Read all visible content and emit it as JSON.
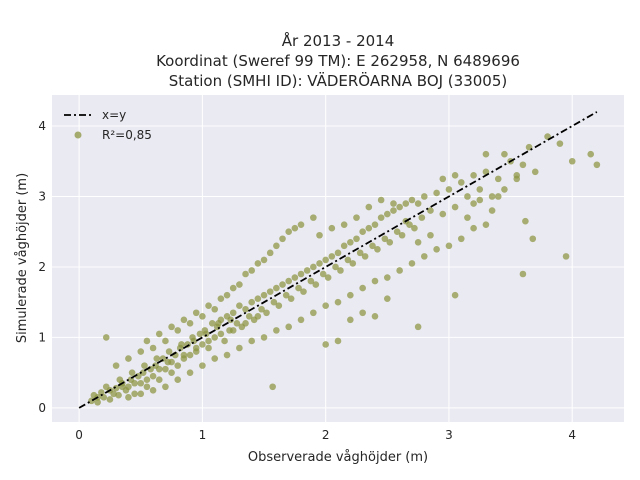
{
  "chart_data": {
    "type": "scatter",
    "title_lines": [
      "År 2013 - 2014",
      "Koordinat (Sweref 99 TM): E 262958, N 6489696",
      "Station (SMHI ID): VÄDERÖARNA BOJ (33005)"
    ],
    "xlabel": "Observerade våghöjder (m)",
    "ylabel": "Simulerade våghöjder (m)",
    "xlim": [
      -0.22,
      4.42
    ],
    "ylim": [
      -0.2,
      4.44
    ],
    "xticks": [
      0,
      1,
      2,
      3,
      4
    ],
    "yticks": [
      0,
      1,
      2,
      3,
      4
    ],
    "grid": true,
    "background_color": "#eaeaf2",
    "legend_position": "top-left",
    "series": [
      {
        "name": "x=y",
        "kind": "line",
        "style": "dashdot",
        "color": "#000000",
        "x": [
          0,
          4.2
        ],
        "y": [
          0,
          4.2
        ]
      },
      {
        "name": "R²=0,85",
        "kind": "scatter",
        "color": "#8c9440",
        "points": [
          [
            0.1,
            0.1
          ],
          [
            0.12,
            0.18
          ],
          [
            0.15,
            0.08
          ],
          [
            0.18,
            0.22
          ],
          [
            0.2,
            0.15
          ],
          [
            0.22,
            0.3
          ],
          [
            0.25,
            0.12
          ],
          [
            0.28,
            0.2
          ],
          [
            0.3,
            0.28
          ],
          [
            0.32,
            0.18
          ],
          [
            0.35,
            0.35
          ],
          [
            0.38,
            0.25
          ],
          [
            0.4,
            0.3
          ],
          [
            0.42,
            0.4
          ],
          [
            0.45,
            0.2
          ],
          [
            0.48,
            0.45
          ],
          [
            0.5,
            0.35
          ],
          [
            0.52,
            0.5
          ],
          [
            0.55,
            0.3
          ],
          [
            0.58,
            0.55
          ],
          [
            0.6,
            0.45
          ],
          [
            0.62,
            0.6
          ],
          [
            0.65,
            0.4
          ],
          [
            0.68,
            0.7
          ],
          [
            0.7,
            0.55
          ],
          [
            0.72,
            0.65
          ],
          [
            0.75,
            0.5
          ],
          [
            0.78,
            0.75
          ],
          [
            0.8,
            0.6
          ],
          [
            0.82,
            0.85
          ],
          [
            0.85,
            0.7
          ],
          [
            0.88,
            0.9
          ],
          [
            0.9,
            0.75
          ],
          [
            0.92,
            1.0
          ],
          [
            0.95,
            0.8
          ],
          [
            0.98,
            1.05
          ],
          [
            1.0,
            0.9
          ],
          [
            1.02,
            1.1
          ],
          [
            1.05,
            0.85
          ],
          [
            1.08,
            1.2
          ],
          [
            1.1,
            1.0
          ],
          [
            1.12,
            1.15
          ],
          [
            1.15,
            1.25
          ],
          [
            1.18,
            0.95
          ],
          [
            1.2,
            1.3
          ],
          [
            1.22,
            1.1
          ],
          [
            1.25,
            1.35
          ],
          [
            1.28,
            1.2
          ],
          [
            1.3,
            1.45
          ],
          [
            1.32,
            1.15
          ],
          [
            1.35,
            1.4
          ],
          [
            1.38,
            1.3
          ],
          [
            1.4,
            1.5
          ],
          [
            1.42,
            1.25
          ],
          [
            1.45,
            1.55
          ],
          [
            1.48,
            1.4
          ],
          [
            1.5,
            1.6
          ],
          [
            1.52,
            1.35
          ],
          [
            1.55,
            1.65
          ],
          [
            1.58,
            1.5
          ],
          [
            1.6,
            1.7
          ],
          [
            1.62,
            1.45
          ],
          [
            1.65,
            1.75
          ],
          [
            1.68,
            1.6
          ],
          [
            1.7,
            1.8
          ],
          [
            1.72,
            1.55
          ],
          [
            1.75,
            1.85
          ],
          [
            1.78,
            1.7
          ],
          [
            1.8,
            1.9
          ],
          [
            1.82,
            1.65
          ],
          [
            1.85,
            1.95
          ],
          [
            1.88,
            1.8
          ],
          [
            1.9,
            2.0
          ],
          [
            1.92,
            1.75
          ],
          [
            1.95,
            2.05
          ],
          [
            1.98,
            1.9
          ],
          [
            2.0,
            2.1
          ],
          [
            2.02,
            1.85
          ],
          [
            2.05,
            2.15
          ],
          [
            2.08,
            2.0
          ],
          [
            2.1,
            2.2
          ],
          [
            2.12,
            1.95
          ],
          [
            2.15,
            2.3
          ],
          [
            2.18,
            2.1
          ],
          [
            2.2,
            2.35
          ],
          [
            2.22,
            2.05
          ],
          [
            2.25,
            2.4
          ],
          [
            2.28,
            2.2
          ],
          [
            2.3,
            2.5
          ],
          [
            2.32,
            2.15
          ],
          [
            2.35,
            2.55
          ],
          [
            2.38,
            2.3
          ],
          [
            2.4,
            2.6
          ],
          [
            2.42,
            2.25
          ],
          [
            2.45,
            2.7
          ],
          [
            2.48,
            2.4
          ],
          [
            2.5,
            2.75
          ],
          [
            2.52,
            2.35
          ],
          [
            2.55,
            2.8
          ],
          [
            2.58,
            2.5
          ],
          [
            2.6,
            2.85
          ],
          [
            2.62,
            2.45
          ],
          [
            2.65,
            2.9
          ],
          [
            2.68,
            2.6
          ],
          [
            2.7,
            2.95
          ],
          [
            2.72,
            2.55
          ],
          [
            2.75,
            2.9
          ],
          [
            2.78,
            2.7
          ],
          [
            2.8,
            3.0
          ],
          [
            2.85,
            2.8
          ],
          [
            2.9,
            3.05
          ],
          [
            2.95,
            2.75
          ],
          [
            3.0,
            3.1
          ],
          [
            3.05,
            2.85
          ],
          [
            3.1,
            3.2
          ],
          [
            3.15,
            3.0
          ],
          [
            3.2,
            3.3
          ],
          [
            3.25,
            3.1
          ],
          [
            3.3,
            3.35
          ],
          [
            3.35,
            3.0
          ],
          [
            3.4,
            3.25
          ],
          [
            3.45,
            3.1
          ],
          [
            3.5,
            3.5
          ],
          [
            3.55,
            3.3
          ],
          [
            3.6,
            3.45
          ],
          [
            3.65,
            3.7
          ],
          [
            3.7,
            3.35
          ],
          [
            3.8,
            3.85
          ],
          [
            3.9,
            3.75
          ],
          [
            4.0,
            3.5
          ],
          [
            4.15,
            3.6
          ],
          [
            4.2,
            3.45
          ],
          [
            3.95,
            2.15
          ],
          [
            3.6,
            1.9
          ],
          [
            3.68,
            2.4
          ],
          [
            3.62,
            2.65
          ],
          [
            3.05,
            1.6
          ],
          [
            2.75,
            1.15
          ],
          [
            1.57,
            0.3
          ],
          [
            0.22,
            1.0
          ],
          [
            0.3,
            0.6
          ],
          [
            0.4,
            0.7
          ],
          [
            0.5,
            0.8
          ],
          [
            0.55,
            0.95
          ],
          [
            0.6,
            0.85
          ],
          [
            0.65,
            1.05
          ],
          [
            0.7,
            0.95
          ],
          [
            0.75,
            1.15
          ],
          [
            0.8,
            1.1
          ],
          [
            0.85,
            1.25
          ],
          [
            0.9,
            1.2
          ],
          [
            0.95,
            1.35
          ],
          [
            1.0,
            1.3
          ],
          [
            1.05,
            1.45
          ],
          [
            1.1,
            1.4
          ],
          [
            1.15,
            1.55
          ],
          [
            1.2,
            1.6
          ],
          [
            1.25,
            1.7
          ],
          [
            1.3,
            1.75
          ],
          [
            1.35,
            1.9
          ],
          [
            1.4,
            1.95
          ],
          [
            1.45,
            2.05
          ],
          [
            1.5,
            2.1
          ],
          [
            1.55,
            2.2
          ],
          [
            1.6,
            2.3
          ],
          [
            1.65,
            2.4
          ],
          [
            1.7,
            2.5
          ],
          [
            1.75,
            2.55
          ],
          [
            1.8,
            2.6
          ],
          [
            1.9,
            2.7
          ],
          [
            0.4,
            0.15
          ],
          [
            0.5,
            0.2
          ],
          [
            0.6,
            0.25
          ],
          [
            0.7,
            0.3
          ],
          [
            0.8,
            0.4
          ],
          [
            0.9,
            0.5
          ],
          [
            1.0,
            0.6
          ],
          [
            1.1,
            0.7
          ],
          [
            1.2,
            0.75
          ],
          [
            1.3,
            0.85
          ],
          [
            1.4,
            0.95
          ],
          [
            1.5,
            1.0
          ],
          [
            1.6,
            1.1
          ],
          [
            1.7,
            1.15
          ],
          [
            1.8,
            1.25
          ],
          [
            1.9,
            1.35
          ],
          [
            2.0,
            1.45
          ],
          [
            2.1,
            1.5
          ],
          [
            2.2,
            1.6
          ],
          [
            2.3,
            1.7
          ],
          [
            2.4,
            1.8
          ],
          [
            2.5,
            1.85
          ],
          [
            2.6,
            1.95
          ],
          [
            2.7,
            2.05
          ],
          [
            2.8,
            2.15
          ],
          [
            2.9,
            2.25
          ],
          [
            3.0,
            2.3
          ],
          [
            3.1,
            2.4
          ],
          [
            3.2,
            2.55
          ],
          [
            3.3,
            2.6
          ],
          [
            2.1,
            0.95
          ],
          [
            2.0,
            0.9
          ],
          [
            2.2,
            1.25
          ],
          [
            2.3,
            1.35
          ],
          [
            2.4,
            1.3
          ],
          [
            2.5,
            1.55
          ],
          [
            0.45,
            0.35
          ],
          [
            0.35,
            0.3
          ],
          [
            0.25,
            0.25
          ],
          [
            0.15,
            0.15
          ],
          [
            0.55,
            0.4
          ],
          [
            0.65,
            0.55
          ],
          [
            0.75,
            0.65
          ],
          [
            0.85,
            0.75
          ],
          [
            0.95,
            0.85
          ],
          [
            1.05,
            0.95
          ],
          [
            1.15,
            1.05
          ],
          [
            1.25,
            1.1
          ],
          [
            1.35,
            1.2
          ],
          [
            1.45,
            1.3
          ],
          [
            0.33,
            0.4
          ],
          [
            0.43,
            0.5
          ],
          [
            0.53,
            0.6
          ],
          [
            0.63,
            0.7
          ],
          [
            0.73,
            0.8
          ],
          [
            0.83,
            0.9
          ],
          [
            0.93,
            0.95
          ],
          [
            1.03,
            1.05
          ],
          [
            1.13,
            1.2
          ],
          [
            1.23,
            1.25
          ],
          [
            2.15,
            2.6
          ],
          [
            2.25,
            2.7
          ],
          [
            2.35,
            2.85
          ],
          [
            2.05,
            2.55
          ],
          [
            1.95,
            2.45
          ],
          [
            2.45,
            2.95
          ],
          [
            2.55,
            2.9
          ],
          [
            2.65,
            2.65
          ],
          [
            2.75,
            2.35
          ],
          [
            2.85,
            2.45
          ],
          [
            3.3,
            3.6
          ],
          [
            3.2,
            2.9
          ],
          [
            3.35,
            2.8
          ],
          [
            3.45,
            3.6
          ],
          [
            3.55,
            3.25
          ],
          [
            3.4,
            3.0
          ],
          [
            3.15,
            2.7
          ],
          [
            3.25,
            2.95
          ],
          [
            3.05,
            3.3
          ],
          [
            2.95,
            3.25
          ]
        ]
      }
    ]
  }
}
